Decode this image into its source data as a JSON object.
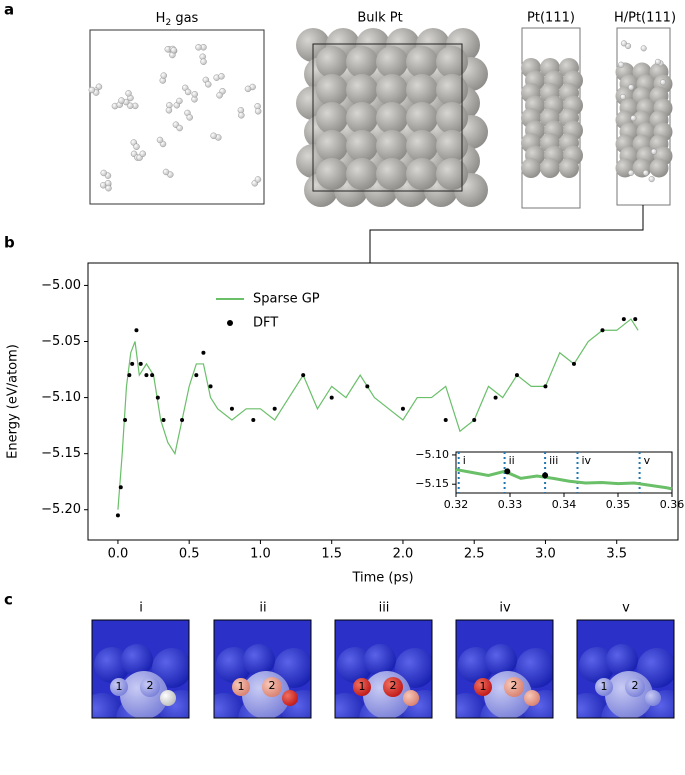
{
  "panel_labels": [
    "a",
    "b",
    "c"
  ],
  "panel_a": {
    "h2_title": [
      "H",
      "2",
      " gas"
    ],
    "titles": [
      "Bulk Pt",
      "Pt(111)",
      "H/Pt(111)"
    ]
  },
  "panel_c": {
    "frames": [
      {
        "title": "i",
        "atoms": [
          "1",
          "2"
        ]
      },
      {
        "title": "ii",
        "atoms": [
          "1",
          "2"
        ]
      },
      {
        "title": "iii",
        "atoms": [
          "1",
          "2"
        ]
      },
      {
        "title": "iv",
        "atoms": [
          "1",
          "2"
        ]
      },
      {
        "title": "v",
        "atoms": [
          "1",
          "2"
        ]
      }
    ]
  },
  "chart_data": [
    {
      "type": "line",
      "xlabel": "Time (ps)",
      "ylabel": "Energy (eV/atom)",
      "xlim": [
        -0.21,
        3.93
      ],
      "ylim": [
        -5.227,
        -4.98
      ],
      "xticks": [
        {
          "value": 0,
          "label": "0.0"
        },
        0.5,
        {
          "value": 1,
          "label": "1.0"
        },
        1.5,
        {
          "value": 2,
          "label": "2.0"
        },
        2.5,
        {
          "value": 3,
          "label": "3.0"
        },
        3.5
      ],
      "yticks": [
        {
          "value": -5.2,
          "label": "−5.20"
        },
        {
          "value": -5.15,
          "label": "−5.15"
        },
        {
          "value": -5.1,
          "label": "−5.10"
        },
        {
          "value": -5.05,
          "label": "−5.05"
        },
        {
          "value": -5.0,
          "label": "−5.00"
        }
      ],
      "legend": "upper-center",
      "series": [
        {
          "name": "Sparse GP",
          "color": "#6abf69",
          "style": "line",
          "x": [
            0,
            0.03,
            0.06,
            0.09,
            0.12,
            0.15,
            0.2,
            0.25,
            0.3,
            0.35,
            0.4,
            0.45,
            0.5,
            0.55,
            0.6,
            0.65,
            0.7,
            0.8,
            0.9,
            1.0,
            1.1,
            1.2,
            1.3,
            1.4,
            1.5,
            1.6,
            1.7,
            1.8,
            1.9,
            2.0,
            2.1,
            2.2,
            2.3,
            2.4,
            2.5,
            2.6,
            2.7,
            2.8,
            2.9,
            3.0,
            3.1,
            3.2,
            3.3,
            3.4,
            3.5,
            3.6,
            3.65
          ],
          "values": [
            -5.2,
            -5.15,
            -5.09,
            -5.06,
            -5.05,
            -5.08,
            -5.07,
            -5.08,
            -5.12,
            -5.14,
            -5.15,
            -5.12,
            -5.09,
            -5.07,
            -5.07,
            -5.1,
            -5.11,
            -5.12,
            -5.11,
            -5.11,
            -5.12,
            -5.1,
            -5.08,
            -5.11,
            -5.09,
            -5.1,
            -5.08,
            -5.1,
            -5.11,
            -5.12,
            -5.1,
            -5.1,
            -5.09,
            -5.13,
            -5.12,
            -5.09,
            -5.1,
            -5.08,
            -5.09,
            -5.09,
            -5.06,
            -5.07,
            -5.05,
            -5.04,
            -5.04,
            -5.03,
            -5.04
          ]
        },
        {
          "name": "DFT",
          "color": "#000000",
          "style": "markers",
          "x": [
            0,
            0.02,
            0.05,
            0.08,
            0.1,
            0.13,
            0.16,
            0.2,
            0.24,
            0.28,
            0.32,
            0.45,
            0.55,
            0.6,
            0.65,
            0.8,
            0.95,
            1.1,
            1.3,
            1.5,
            1.75,
            2.0,
            2.3,
            2.5,
            2.65,
            2.8,
            3.0,
            3.2,
            3.4,
            3.55,
            3.63
          ],
          "values": [
            -5.205,
            -5.18,
            -5.12,
            -5.08,
            -5.07,
            -5.04,
            -5.07,
            -5.08,
            -5.08,
            -5.1,
            -5.12,
            -5.12,
            -5.08,
            -5.06,
            -5.09,
            -5.11,
            -5.12,
            -5.11,
            -5.08,
            -5.1,
            -5.09,
            -5.11,
            -5.12,
            -5.12,
            -5.1,
            -5.08,
            -5.09,
            -5.07,
            -5.04,
            -5.03,
            -5.03
          ]
        }
      ]
    },
    {
      "type": "line",
      "xlim": [
        0.32,
        0.36
      ],
      "ylim": [
        -5.165,
        -5.095
      ],
      "xticks": [
        0.32,
        0.33,
        0.34,
        0.35,
        0.36
      ],
      "yticks": [
        {
          "value": -5.1,
          "label": "−5.10"
        },
        {
          "value": -5.15,
          "label": "−5.15"
        }
      ],
      "vlines": [
        {
          "value": 0.3205,
          "label": "i"
        },
        {
          "value": 0.329,
          "label": "ii"
        },
        {
          "value": 0.3365,
          "label": "iii"
        },
        {
          "value": 0.3425,
          "label": "iv"
        },
        {
          "value": 0.354,
          "label": "v"
        }
      ],
      "series": [
        {
          "name": "Sparse GP",
          "color": "#6abf69",
          "style": "line",
          "x": [
            0.32,
            0.323,
            0.326,
            0.329,
            0.332,
            0.335,
            0.338,
            0.341,
            0.344,
            0.347,
            0.35,
            0.353,
            0.356,
            0.359,
            0.36
          ],
          "values": [
            -5.125,
            -5.13,
            -5.135,
            -5.128,
            -5.14,
            -5.136,
            -5.14,
            -5.145,
            -5.148,
            -5.147,
            -5.149,
            -5.148,
            -5.152,
            -5.156,
            -5.158
          ]
        },
        {
          "name": "DFT",
          "color": "#000000",
          "style": "markers",
          "x": [
            0.3295,
            0.3365
          ],
          "values": [
            -5.128,
            -5.135
          ]
        }
      ]
    }
  ]
}
